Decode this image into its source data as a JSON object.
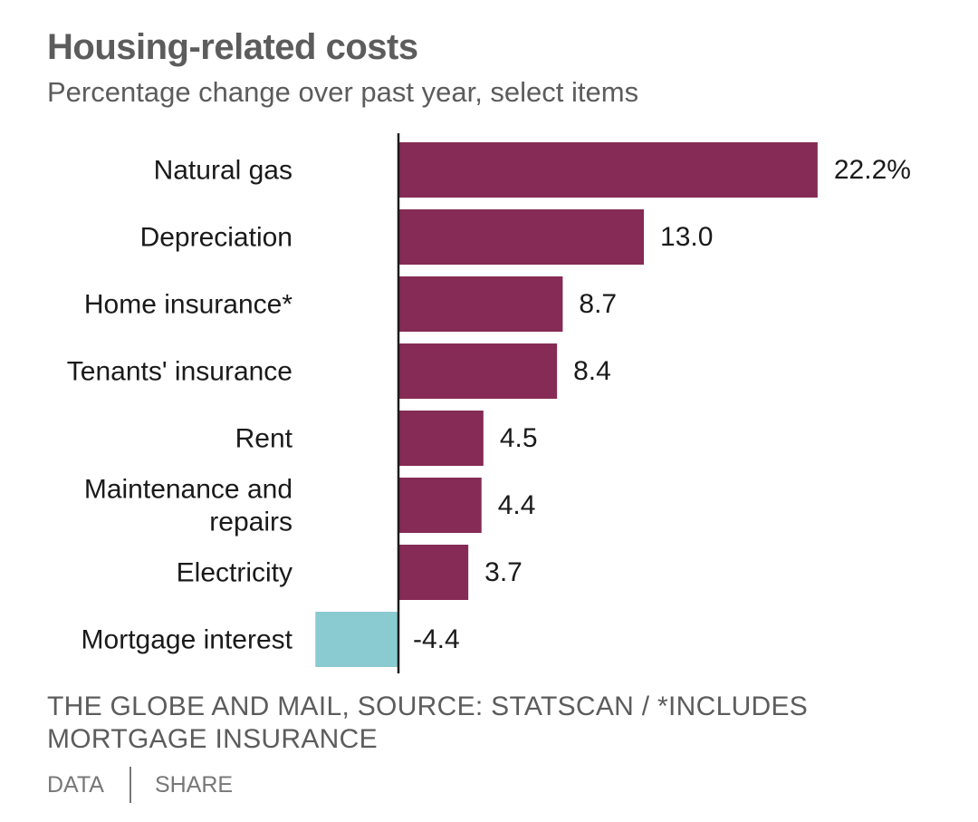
{
  "title": "Housing-related costs",
  "subtitle": "Percentage change over past year, select items",
  "source": "THE GLOBE AND MAIL, SOURCE: STATSCAN / *INCLUDES MORTGAGE INSURANCE",
  "footer": {
    "data_label": "DATA",
    "share_label": "SHARE"
  },
  "colors": {
    "positive": "#852b55",
    "negative": "#8acbd2",
    "axis": "#1a1a1a",
    "text": "#1a1a1a",
    "muted": "#5c5c5c"
  },
  "chart_data": {
    "type": "bar",
    "orientation": "horizontal",
    "categories": [
      "Natural gas",
      "Depreciation",
      "Home insurance*",
      "Tenants' insurance",
      "Rent",
      "Maintenance and repairs",
      "Electricity",
      "Mortgage interest"
    ],
    "category_lines": [
      [
        "Natural gas"
      ],
      [
        "Depreciation"
      ],
      [
        "Home insurance*"
      ],
      [
        "Tenants' insurance"
      ],
      [
        "Rent"
      ],
      [
        "Maintenance and",
        "repairs"
      ],
      [
        "Electricity"
      ],
      [
        "Mortgage interest"
      ]
    ],
    "values": [
      22.2,
      13.0,
      8.7,
      8.4,
      4.5,
      4.4,
      3.7,
      -4.4
    ],
    "value_labels": [
      "22.2%",
      "13.0",
      "8.7",
      "8.4",
      "4.5",
      "4.4",
      "3.7",
      "-4.4"
    ],
    "xlim": [
      -4.4,
      22.2
    ],
    "grid": false,
    "legend": "none"
  }
}
